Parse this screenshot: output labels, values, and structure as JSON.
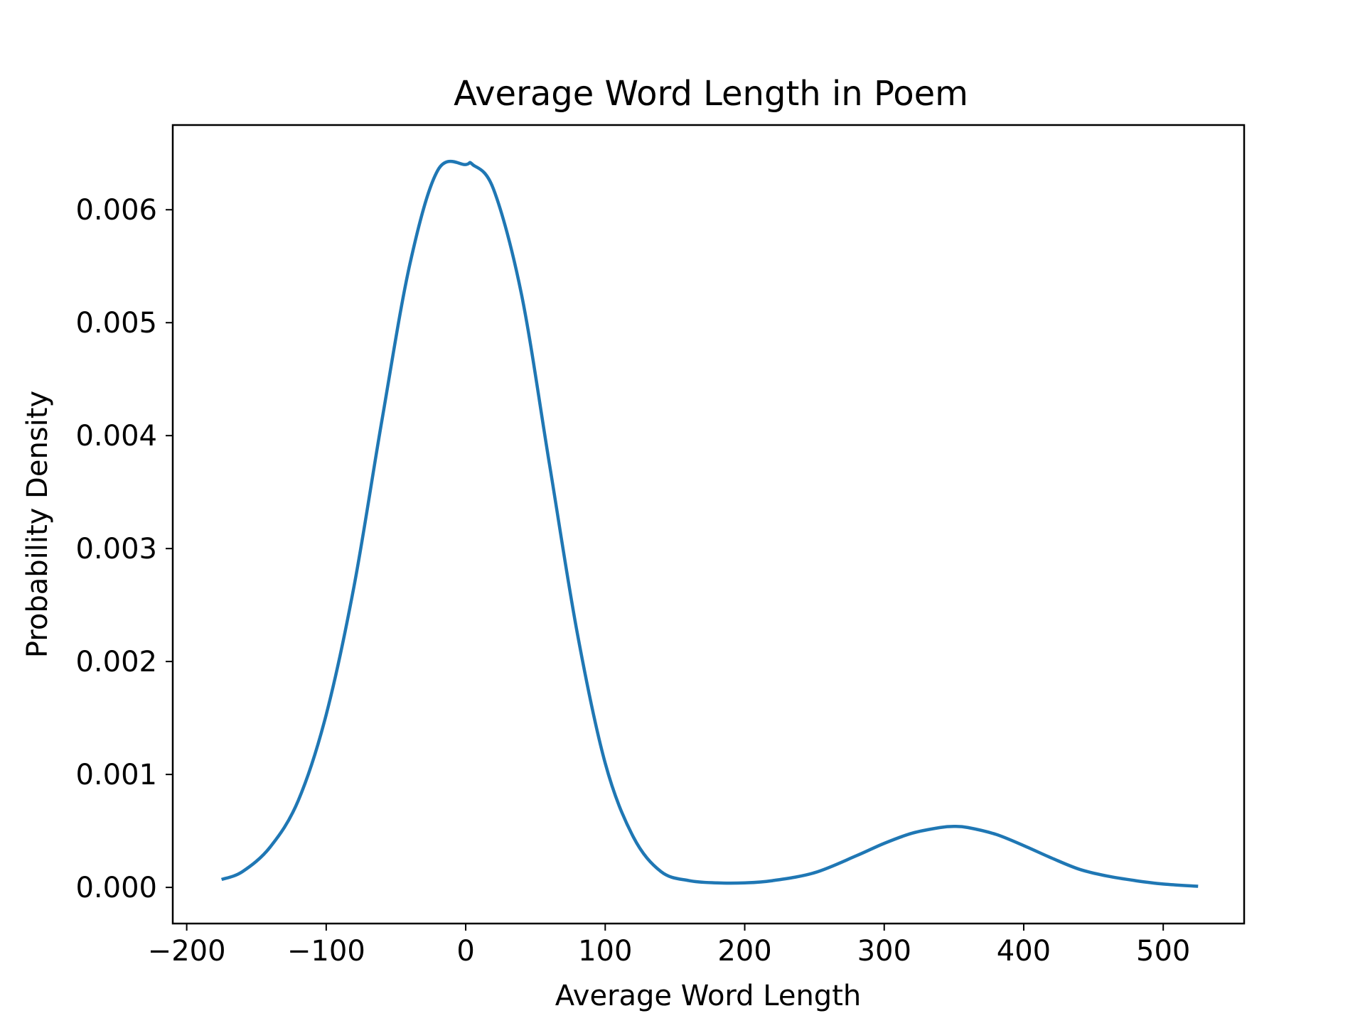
{
  "chart_data": {
    "type": "line",
    "title": "Average Word Length in Poem",
    "xlabel": "Average Word Length",
    "ylabel": "Probability Density",
    "xlim": [
      -210,
      558
    ],
    "ylim": [
      -0.00032,
      0.00675
    ],
    "x_ticks": [
      -200,
      -100,
      0,
      100,
      200,
      300,
      400,
      500
    ],
    "x_tick_labels": [
      "−200",
      "−100",
      "0",
      "100",
      "200",
      "300",
      "400",
      "500"
    ],
    "y_ticks": [
      0.0,
      0.001,
      0.002,
      0.003,
      0.004,
      0.005,
      0.006
    ],
    "y_tick_labels": [
      "0.000",
      "0.001",
      "0.002",
      "0.003",
      "0.004",
      "0.005",
      "0.006"
    ],
    "grid": false,
    "legend": "none",
    "series_color": "#1f77b4",
    "series": [
      {
        "x": [
          -175,
          -160,
          -140,
          -120,
          -100,
          -80,
          -60,
          -40,
          -20,
          0,
          5,
          20,
          40,
          60,
          80,
          100,
          120,
          140,
          160,
          180,
          200,
          220,
          250,
          280,
          300,
          320,
          340,
          350,
          360,
          380,
          400,
          420,
          440,
          460,
          480,
          500,
          525
        ],
        "values": [
          7e-05,
          0.00014,
          0.00036,
          0.00077,
          0.00153,
          0.00267,
          0.00414,
          0.00552,
          0.00635,
          0.0064,
          0.0064,
          0.00618,
          0.00525,
          0.00375,
          0.00225,
          0.0011,
          0.00045,
          0.00014,
          6e-05,
          4e-05,
          4e-05,
          6e-05,
          0.00013,
          0.00028,
          0.00039,
          0.00048,
          0.00053,
          0.00054,
          0.00053,
          0.00047,
          0.00037,
          0.00026,
          0.00016,
          0.0001,
          6e-05,
          3e-05,
          1e-05
        ]
      }
    ]
  }
}
